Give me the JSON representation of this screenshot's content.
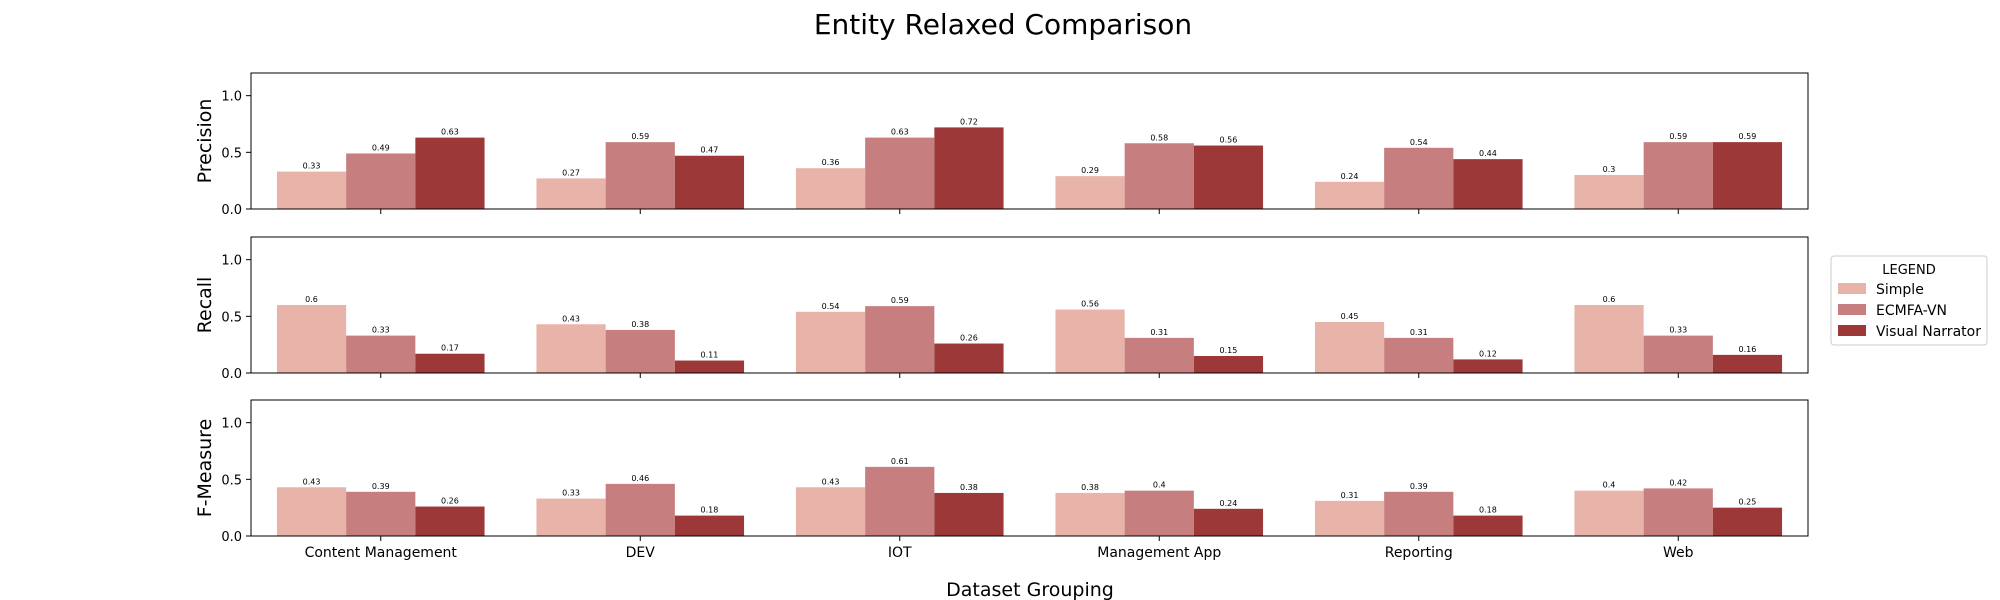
{
  "chart_data": {
    "type": "bar",
    "title": "Entity Relaxed Comparison",
    "xlabel": "Dataset Grouping",
    "categories": [
      "Content Management",
      "DEV",
      "IOT",
      "Management App",
      "Reporting",
      "Web"
    ],
    "ylim": [
      0,
      1.2
    ],
    "yticks": [
      "0.0",
      "0.5",
      "1.0"
    ],
    "legend": {
      "title": "LEGEND",
      "placement": "center-right"
    },
    "series_names": [
      "Simple",
      "ECMFA-VN",
      "Visual Narrator"
    ],
    "colors": {
      "Simple": "#e8b4aa",
      "ECMFA-VN": "#c67e7e",
      "Visual Narrator": "#9c3838"
    },
    "grid": false,
    "panels": [
      {
        "ylabel": "Precision",
        "series": [
          {
            "name": "Simple",
            "values": [
              0.33,
              0.27,
              0.36,
              0.29,
              0.24,
              0.3
            ]
          },
          {
            "name": "ECMFA-VN",
            "values": [
              0.49,
              0.59,
              0.63,
              0.58,
              0.54,
              0.59
            ]
          },
          {
            "name": "Visual Narrator",
            "values": [
              0.63,
              0.47,
              0.72,
              0.56,
              0.44,
              0.59
            ]
          }
        ]
      },
      {
        "ylabel": "Recall",
        "series": [
          {
            "name": "Simple",
            "values": [
              0.6,
              0.43,
              0.54,
              0.56,
              0.45,
              0.6
            ]
          },
          {
            "name": "ECMFA-VN",
            "values": [
              0.33,
              0.38,
              0.59,
              0.31,
              0.31,
              0.33
            ]
          },
          {
            "name": "Visual Narrator",
            "values": [
              0.17,
              0.11,
              0.26,
              0.15,
              0.12,
              0.16
            ]
          }
        ]
      },
      {
        "ylabel": "F-Measure",
        "series": [
          {
            "name": "Simple",
            "values": [
              0.43,
              0.33,
              0.43,
              0.38,
              0.31,
              0.4
            ]
          },
          {
            "name": "ECMFA-VN",
            "values": [
              0.39,
              0.46,
              0.61,
              0.4,
              0.39,
              0.42
            ]
          },
          {
            "name": "Visual Narrator",
            "values": [
              0.26,
              0.18,
              0.38,
              0.24,
              0.18,
              0.25
            ]
          }
        ]
      }
    ]
  }
}
